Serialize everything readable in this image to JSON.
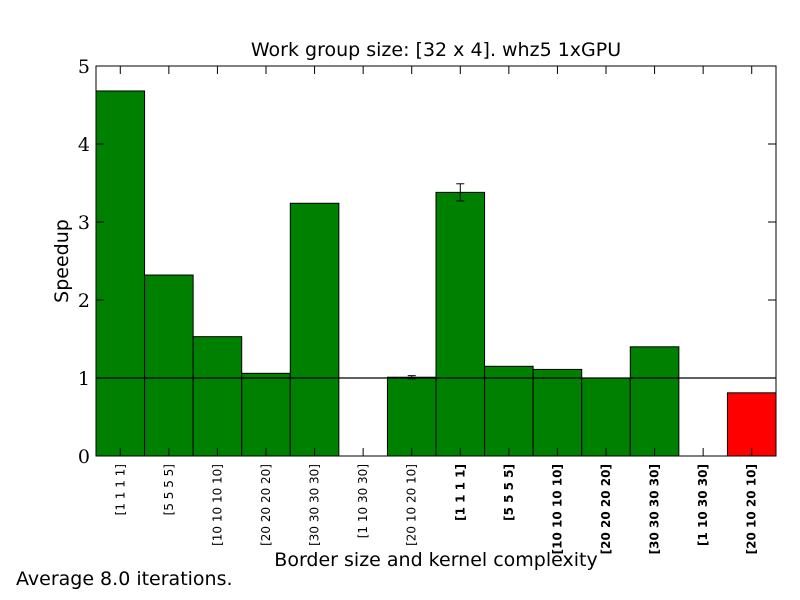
{
  "chart_data": {
    "type": "bar",
    "title": "Work group size: [32 x 4]. whz5 1xGPU",
    "xlabel": "Border size and kernel complexity",
    "ylabel": "Speedup",
    "ylim": [
      0,
      5
    ],
    "yticks": [
      0,
      1,
      2,
      3,
      4,
      5
    ],
    "reference_line": 1,
    "grid": false,
    "categories": [
      "[1 1 1 1]",
      "[5 5 5 5]",
      "[10 10 10 10]",
      "[20 20 20 20]",
      "[30 30 30 30]",
      "[1 10 30 30]",
      "[20 10 20 10]",
      "[1 1 1 1]",
      "[5 5 5 5]",
      "[10 10 10 10]",
      "[20 20 20 20]",
      "[30 30 30 30]",
      "[1 10 30 30]",
      "[20 10 20 10]"
    ],
    "category_bold": [
      false,
      false,
      false,
      false,
      false,
      false,
      false,
      true,
      true,
      true,
      true,
      true,
      true,
      true
    ],
    "values": [
      4.68,
      2.32,
      1.53,
      1.06,
      3.24,
      0,
      1.01,
      3.38,
      1.15,
      1.11,
      1.0,
      1.4,
      0,
      0.81
    ],
    "errors": [
      0,
      0,
      0,
      0,
      0,
      0,
      0.02,
      0.11,
      0,
      0,
      0,
      0,
      0,
      0
    ],
    "bar_colors": [
      "#008000",
      "#008000",
      "#008000",
      "#008000",
      "#008000",
      "#008000",
      "#008000",
      "#008000",
      "#008000",
      "#008000",
      "#008000",
      "#008000",
      "#008000",
      "#ff0000"
    ]
  },
  "footnote": "Average 8.0 iterations."
}
